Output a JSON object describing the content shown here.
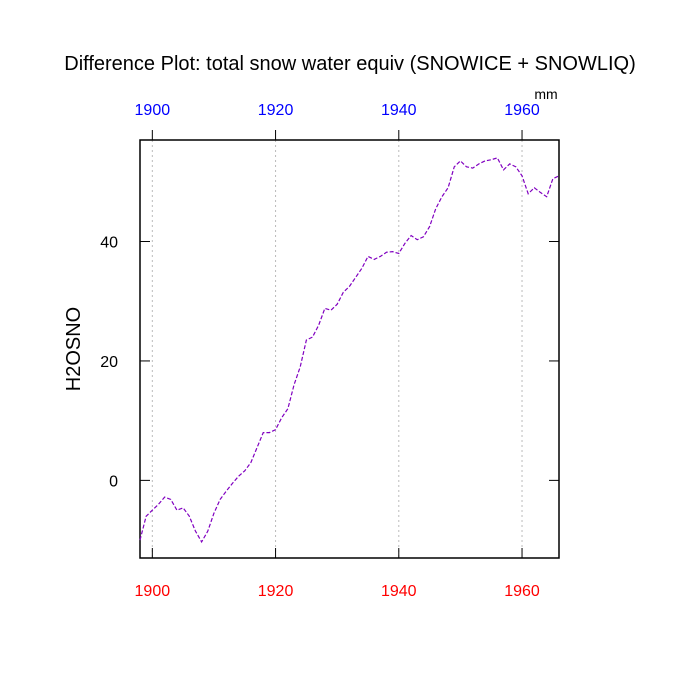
{
  "chart_data": {
    "type": "line",
    "title": "Difference Plot: total snow water equiv (SNOWICE + SNOWLIQ)",
    "y_label": "H2OSNO",
    "units": "mm",
    "x": [
      1898,
      1899,
      1900,
      1901,
      1902,
      1903,
      1904,
      1905,
      1906,
      1907,
      1908,
      1909,
      1910,
      1911,
      1912,
      1913,
      1914,
      1915,
      1916,
      1917,
      1918,
      1919,
      1920,
      1921,
      1922,
      1923,
      1924,
      1925,
      1926,
      1927,
      1928,
      1929,
      1930,
      1931,
      1932,
      1933,
      1934,
      1935,
      1936,
      1937,
      1938,
      1939,
      1940,
      1941,
      1942,
      1943,
      1944,
      1945,
      1946,
      1947,
      1948,
      1949,
      1950,
      1951,
      1952,
      1953,
      1954,
      1955,
      1956,
      1957,
      1958,
      1959,
      1960,
      1961,
      1962,
      1963,
      1964,
      1965,
      1966
    ],
    "series": [
      {
        "color": "#8000c0",
        "values": [
          -10,
          -6,
          -5,
          -4,
          -2.8,
          -3.2,
          -5,
          -4.6,
          -6,
          -8.5,
          -10.3,
          -8.5,
          -5.5,
          -3.2,
          -1.8,
          -0.5,
          0.7,
          1.6,
          3,
          5.5,
          8,
          8,
          8.5,
          10.5,
          12,
          16,
          19,
          23.5,
          24,
          26,
          28.8,
          28.5,
          29.5,
          31.5,
          32.5,
          34,
          35.5,
          37.5,
          37,
          37.5,
          38.2,
          38.3,
          38,
          39.7,
          41,
          40.3,
          40.8,
          42.5,
          45.5,
          47.5,
          49,
          52.5,
          53.5,
          52.5,
          52.3,
          53,
          53.5,
          53.7,
          54,
          52,
          53,
          52.5,
          51,
          48,
          49,
          48.2,
          47.5,
          50.5,
          51
        ]
      }
    ],
    "xlim": [
      1898,
      1966
    ],
    "ylim": [
      -13,
      57
    ],
    "xticks": [
      1900,
      1920,
      1940,
      1960
    ],
    "yticks": [
      0,
      20,
      40
    ],
    "xgrid": true,
    "bottom_axis_color": "#ff0000",
    "top_axis_color": "#0000ff"
  }
}
